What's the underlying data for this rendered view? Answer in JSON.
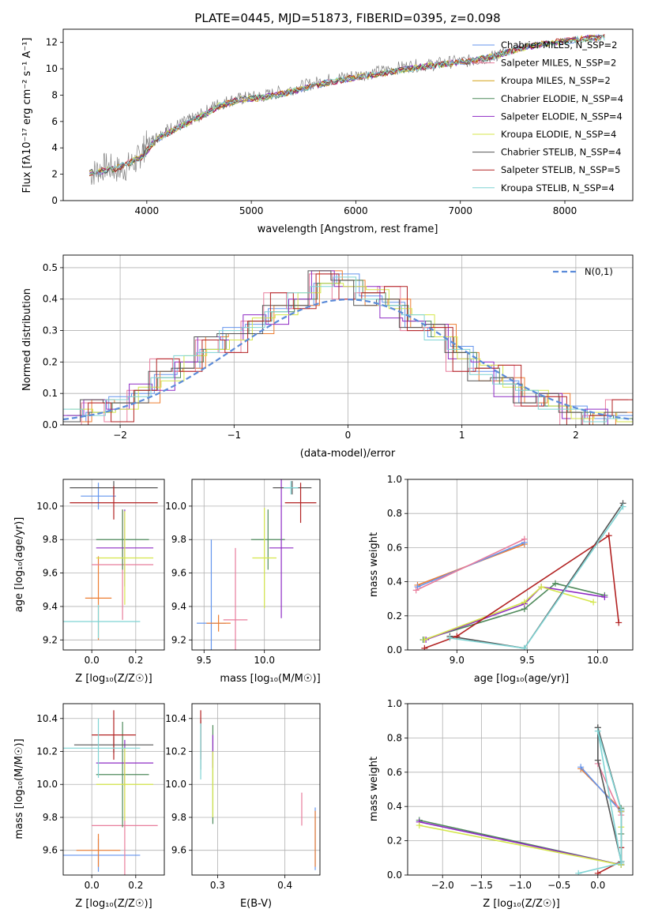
{
  "colors": [
    "#6495ed",
    "#ed7d31",
    "#d4a017",
    "#4f8a5b",
    "#8e2bc4",
    "#d4e64a",
    "#555555",
    "#b22222",
    "#7fd4d4"
  ],
  "chart_data": [
    {
      "type": "line",
      "title": "PLATE=0445, MJD=51873, FIBERID=0395, z=0.098",
      "xlabel": "wavelength [Angstrom, rest frame]",
      "ylabel": "Flux [fλ10⁻¹⁷ erg cm⁻² s⁻¹ A⁻¹]",
      "xlim": [
        3200,
        8650
      ],
      "ylim": [
        0,
        13
      ],
      "xticks": [
        4000,
        5000,
        6000,
        7000,
        8000
      ],
      "yticks": [
        0,
        2,
        4,
        6,
        8,
        10,
        12
      ],
      "grid": false,
      "legend": "upper right",
      "data_color": "#808080",
      "data_x": [
        3460,
        3600,
        3750,
        3900,
        4000,
        4100,
        4200,
        4350,
        4500,
        4650,
        4800,
        4950,
        5100,
        5300,
        5500,
        5700,
        5900,
        6100,
        6300,
        6500,
        6700,
        6900,
        7100,
        7300,
        7420
      ],
      "data_y": [
        2.0,
        2.6,
        2.3,
        3.0,
        4.3,
        4.8,
        5.4,
        5.9,
        6.4,
        7.2,
        7.6,
        7.8,
        7.9,
        8.3,
        8.7,
        9.1,
        9.4,
        9.6,
        9.9,
        10.2,
        10.3,
        10.5,
        10.6,
        10.9,
        11.2
      ],
      "series": [
        {
          "name": "Chabrier MILES, N_SSP=2",
          "color": "#6495ed"
        },
        {
          "name": "Salpeter MILES, N_SSP=2",
          "color": "#e87d9c"
        },
        {
          "name": "Kroupa MILES, N_SSP=2",
          "color": "#d4a017"
        },
        {
          "name": "Chabrier ELODIE, N_SSP=4",
          "color": "#4f8a5b"
        },
        {
          "name": "Salpeter ELODIE, N_SSP=4",
          "color": "#8e2bc4"
        },
        {
          "name": "Kroupa ELODIE, N_SSP=4",
          "color": "#d4e64a"
        },
        {
          "name": "Chabrier STELIB, N_SSP=4",
          "color": "#555555"
        },
        {
          "name": "Salpeter STELIB, N_SSP=5",
          "color": "#b22222"
        },
        {
          "name": "Kroupa STELIB, N_SSP=4",
          "color": "#7fd4d4"
        }
      ],
      "model_x": [
        3450,
        3700,
        3950,
        4100,
        4300,
        4500,
        4700,
        4900,
        5100,
        5300,
        5500,
        5700,
        5900,
        6100,
        6300,
        6500,
        6700,
        6900,
        7100,
        7300,
        7420,
        7600,
        7800,
        8000,
        8200,
        8400
      ],
      "model_y": [
        2.1,
        2.4,
        3.3,
        4.7,
        5.5,
        6.3,
        7.2,
        7.7,
        7.8,
        8.1,
        8.5,
        8.9,
        9.2,
        9.5,
        9.7,
        10.0,
        10.2,
        10.4,
        10.6,
        10.9,
        11.2,
        11.6,
        11.9,
        12.1,
        12.3,
        12.4
      ]
    },
    {
      "type": "line",
      "xlabel": "(data-model)/error",
      "ylabel": "Normed distribution",
      "xlim": [
        -2.5,
        2.5
      ],
      "ylim": [
        0,
        0.54
      ],
      "xticks": [
        -2,
        -1,
        0,
        1,
        2
      ],
      "yticks": [
        0.0,
        0.1,
        0.2,
        0.3,
        0.4,
        0.5
      ],
      "grid": true,
      "legend": "upper right",
      "legend_label": "N(0,1)",
      "normal_color": "#5b8bd9",
      "bin_edges": [
        -2.5,
        -2.3,
        -2.1,
        -1.9,
        -1.7,
        -1.5,
        -1.3,
        -1.1,
        -0.9,
        -0.7,
        -0.5,
        -0.3,
        -0.1,
        0.1,
        0.3,
        0.5,
        0.7,
        0.9,
        1.1,
        1.3,
        1.5,
        1.7,
        1.9,
        2.1,
        2.3,
        2.5
      ],
      "hist_values": [
        0.03,
        0.04,
        0.07,
        0.11,
        0.15,
        0.2,
        0.24,
        0.29,
        0.33,
        0.36,
        0.4,
        0.45,
        0.46,
        0.42,
        0.38,
        0.33,
        0.28,
        0.23,
        0.18,
        0.13,
        0.09,
        0.06,
        0.04,
        0.03,
        0.02
      ]
    },
    {
      "type": "scatter",
      "xlabel": "Z [log10(Z/Z☉)]",
      "ylabel": "age  [log10(age/yr)]",
      "xlim": [
        -0.13,
        0.33
      ],
      "ylim": [
        9.14,
        10.16
      ],
      "xticks": [
        0.0,
        0.2
      ],
      "yticks": [
        9.2,
        9.4,
        9.6,
        9.8,
        10.0
      ],
      "grid": true,
      "points": [
        {
          "x": 0.03,
          "y": 10.06,
          "xerr": 0.08,
          "yerr": 0.08,
          "c": 0
        },
        {
          "x": 0.03,
          "y": 9.45,
          "xerr": 0.06,
          "yerr": 0.25,
          "c": 1
        },
        {
          "x": 0.14,
          "y": 9.65,
          "xerr": 0.14,
          "yerr": 0.33,
          "c": 2
        },
        {
          "x": 0.14,
          "y": 9.8,
          "xerr": 0.12,
          "yerr": 0.18,
          "c": 3
        },
        {
          "x": 0.15,
          "y": 9.75,
          "xerr": 0.13,
          "yerr": 0.23,
          "c": 4
        },
        {
          "x": 0.15,
          "y": 9.69,
          "xerr": 0.13,
          "yerr": 0.28,
          "c": 5
        },
        {
          "x": 0.1,
          "y": 10.11,
          "xerr": 0.2,
          "yerr": 0.04,
          "c": 6
        },
        {
          "x": 0.1,
          "y": 10.02,
          "xerr": 0.2,
          "yerr": 0.1,
          "c": 7
        },
        {
          "x": 0.03,
          "y": 9.31,
          "xerr": 0.19,
          "yerr": 0.1,
          "c": 8
        }
      ]
    },
    {
      "type": "scatter",
      "xlabel": "mass [log10(M/M☉)]",
      "ylabel": "",
      "xlim": [
        9.4,
        10.46
      ],
      "ylim": [
        9.14,
        10.16
      ],
      "xticks": [
        9.5,
        10.0
      ],
      "yticks": [
        9.2,
        9.4,
        9.6,
        9.8,
        10.0
      ],
      "grid": true,
      "points": [
        {
          "x": 9.56,
          "y": 9.3,
          "xerr": 0.12,
          "yerr": 0.5,
          "c": 0
        },
        {
          "x": 9.62,
          "y": 9.3,
          "xerr": 0.1,
          "yerr": 0.05,
          "c": 1
        },
        {
          "x": 9.76,
          "y": 9.32,
          "xerr": 0.1,
          "yerr": 0.43,
          "c": 2
        },
        {
          "x": 10.03,
          "y": 9.8,
          "xerr": 0.14,
          "yerr": 0.18,
          "c": 3
        },
        {
          "x": 10.14,
          "y": 9.75,
          "xerr": 0.1,
          "yerr": 0.42,
          "c": 4
        },
        {
          "x": 10.0,
          "y": 9.69,
          "xerr": 0.1,
          "yerr": 0.3,
          "c": 5
        },
        {
          "x": 10.23,
          "y": 10.11,
          "xerr": 0.16,
          "yerr": 0.04,
          "c": 6
        },
        {
          "x": 10.3,
          "y": 10.02,
          "xerr": 0.13,
          "yerr": 0.12,
          "c": 7
        },
        {
          "x": 10.22,
          "y": 10.11,
          "xerr": 0.06,
          "yerr": 0.04,
          "c": 8
        }
      ]
    },
    {
      "type": "line",
      "xlabel": "age  [log10(age/yr)]",
      "ylabel": "mass weight",
      "xlim": [
        8.65,
        10.25
      ],
      "ylim": [
        0,
        1.0
      ],
      "xticks": [
        9.0,
        9.5,
        10.0
      ],
      "yticks": [
        0.0,
        0.2,
        0.4,
        0.6,
        0.8,
        1.0
      ],
      "grid": true,
      "series": [
        {
          "c": 1,
          "x": [
            8.72,
            9.48
          ],
          "y": [
            0.38,
            0.62
          ]
        },
        {
          "c": 0,
          "x": [
            8.72,
            9.48
          ],
          "y": [
            0.37,
            0.63
          ]
        },
        {
          "c": 2,
          "x": [
            8.71,
            9.48
          ],
          "y": [
            0.35,
            0.65
          ]
        },
        {
          "c": 3,
          "x": [
            8.76,
            9.48,
            9.7,
            10.05
          ],
          "y": [
            0.06,
            0.24,
            0.39,
            0.32
          ]
        },
        {
          "c": 4,
          "x": [
            8.78,
            9.48,
            9.6,
            10.05
          ],
          "y": [
            0.06,
            0.27,
            0.37,
            0.31
          ]
        },
        {
          "c": 5,
          "x": [
            8.77,
            9.48,
            9.6,
            9.97
          ],
          "y": [
            0.06,
            0.28,
            0.37,
            0.28
          ]
        },
        {
          "c": 6,
          "x": [
            8.95,
            9.48,
            10.18
          ],
          "y": [
            0.08,
            0.01,
            0.86
          ]
        },
        {
          "c": 7,
          "x": [
            8.77,
            9.0,
            10.08,
            10.15
          ],
          "y": [
            0.01,
            0.08,
            0.67,
            0.16
          ]
        },
        {
          "c": 8,
          "x": [
            8.95,
            9.48,
            10.18
          ],
          "y": [
            0.07,
            0.01,
            0.84
          ]
        }
      ]
    },
    {
      "type": "scatter",
      "xlabel": "Z [log10(Z/Z☉)]",
      "ylabel": "mass [log10(M/M☉)]",
      "xlim": [
        -0.13,
        0.33
      ],
      "ylim": [
        9.45,
        10.49
      ],
      "xticks": [
        0.0,
        0.2
      ],
      "yticks": [
        9.6,
        9.8,
        10.0,
        10.2,
        10.4
      ],
      "grid": true,
      "points": [
        {
          "x": 0.03,
          "y": 9.57,
          "xerr": 0.19,
          "yerr": 0.1,
          "c": 0
        },
        {
          "x": 0.03,
          "y": 9.6,
          "xerr": 0.1,
          "yerr": 0.1,
          "c": 1
        },
        {
          "x": 0.15,
          "y": 9.75,
          "xerr": 0.15,
          "yerr": 0.4,
          "c": 2
        },
        {
          "x": 0.14,
          "y": 10.06,
          "xerr": 0.12,
          "yerr": 0.32,
          "c": 3
        },
        {
          "x": 0.15,
          "y": 10.13,
          "xerr": 0.13,
          "yerr": 0.14,
          "c": 4
        },
        {
          "x": 0.15,
          "y": 10.0,
          "xerr": 0.13,
          "yerr": 0.22,
          "c": 5
        },
        {
          "x": 0.1,
          "y": 10.24,
          "xerr": 0.18,
          "yerr": 0.05,
          "c": 6
        },
        {
          "x": 0.1,
          "y": 10.3,
          "xerr": 0.1,
          "yerr": 0.15,
          "c": 7
        },
        {
          "x": 0.03,
          "y": 10.22,
          "xerr": 0.19,
          "yerr": 0.18,
          "c": 8
        }
      ]
    },
    {
      "type": "scatter",
      "xlabel": "E(B-V)",
      "ylabel": "",
      "xlim": [
        0.262,
        0.452
      ],
      "ylim": [
        9.45,
        10.49
      ],
      "xticks": [
        0.3,
        0.4
      ],
      "yticks": [
        9.6,
        9.8,
        10.0,
        10.2,
        10.4
      ],
      "grid": true,
      "points": [
        {
          "x": 0.445,
          "y": 9.67,
          "xerr": 0,
          "yerr": 0.19,
          "c": 0
        },
        {
          "x": 0.445,
          "y": 9.67,
          "xerr": 0,
          "yerr": 0.17,
          "c": 1
        },
        {
          "x": 0.425,
          "y": 9.85,
          "xerr": 0,
          "yerr": 0.1,
          "c": 2
        },
        {
          "x": 0.293,
          "y": 10.06,
          "xerr": 0,
          "yerr": 0.3,
          "c": 3
        },
        {
          "x": 0.293,
          "y": 10.2,
          "xerr": 0,
          "yerr": 0.1,
          "c": 4
        },
        {
          "x": 0.293,
          "y": 10.0,
          "xerr": 0,
          "yerr": 0.2,
          "c": 5
        },
        {
          "x": 0.275,
          "y": 10.24,
          "xerr": 0,
          "yerr": 0.15,
          "c": 6
        },
        {
          "x": 0.275,
          "y": 10.3,
          "xerr": 0,
          "yerr": 0.15,
          "c": 7
        },
        {
          "x": 0.275,
          "y": 10.2,
          "xerr": 0,
          "yerr": 0.17,
          "c": 8
        }
      ]
    },
    {
      "type": "line",
      "xlabel": "Z [log10(Z/Z☉)]",
      "ylabel": "mass weight",
      "xlim": [
        -2.45,
        0.45
      ],
      "ylim": [
        0,
        1.0
      ],
      "xticks": [
        -2.0,
        -1.5,
        -1.0,
        -0.5,
        0.0
      ],
      "yticks": [
        0.0,
        0.2,
        0.4,
        0.6,
        0.8,
        1.0
      ],
      "grid": true,
      "series": [
        {
          "c": 1,
          "x": [
            -0.22,
            0.3
          ],
          "y": [
            0.62,
            0.38
          ]
        },
        {
          "c": 0,
          "x": [
            -0.22,
            0.3
          ],
          "y": [
            0.63,
            0.37
          ]
        },
        {
          "c": 2,
          "x": [
            0.0,
            0.3,
            0.3
          ],
          "y": [
            0.65,
            0.35,
            0.38
          ]
        },
        {
          "c": 3,
          "x": [
            -2.3,
            0.3,
            0.3,
            0.3,
            0.3
          ],
          "y": [
            0.32,
            0.06,
            0.24,
            0.39,
            0.06
          ]
        },
        {
          "c": 4,
          "x": [
            -2.3,
            0.3,
            0.3
          ],
          "y": [
            0.31,
            0.06,
            0.37
          ]
        },
        {
          "c": 5,
          "x": [
            -2.3,
            0.3,
            0.3,
            0.3
          ],
          "y": [
            0.29,
            0.06,
            0.28,
            0.37
          ]
        },
        {
          "c": 6,
          "x": [
            0.0,
            0.0,
            0.3,
            0.3,
            0.0
          ],
          "y": [
            0.86,
            0.67,
            0.08,
            0.38,
            0.86
          ]
        },
        {
          "c": 7,
          "x": [
            0.0,
            0.3,
            0.3
          ],
          "y": [
            0.01,
            0.08,
            0.16
          ]
        },
        {
          "c": 8,
          "x": [
            -0.25,
            0.3,
            0.0,
            0.3,
            0.3
          ],
          "y": [
            0.01,
            0.07,
            0.84,
            0.38,
            0.08
          ]
        }
      ]
    }
  ],
  "axis_text": {
    "xunit_z": "Z [log₁₀(Z/Z☉)]",
    "age_label": "age  [log₁₀(age/yr)]",
    "mass_label": "mass [log₁₀(M/M☉)]"
  }
}
